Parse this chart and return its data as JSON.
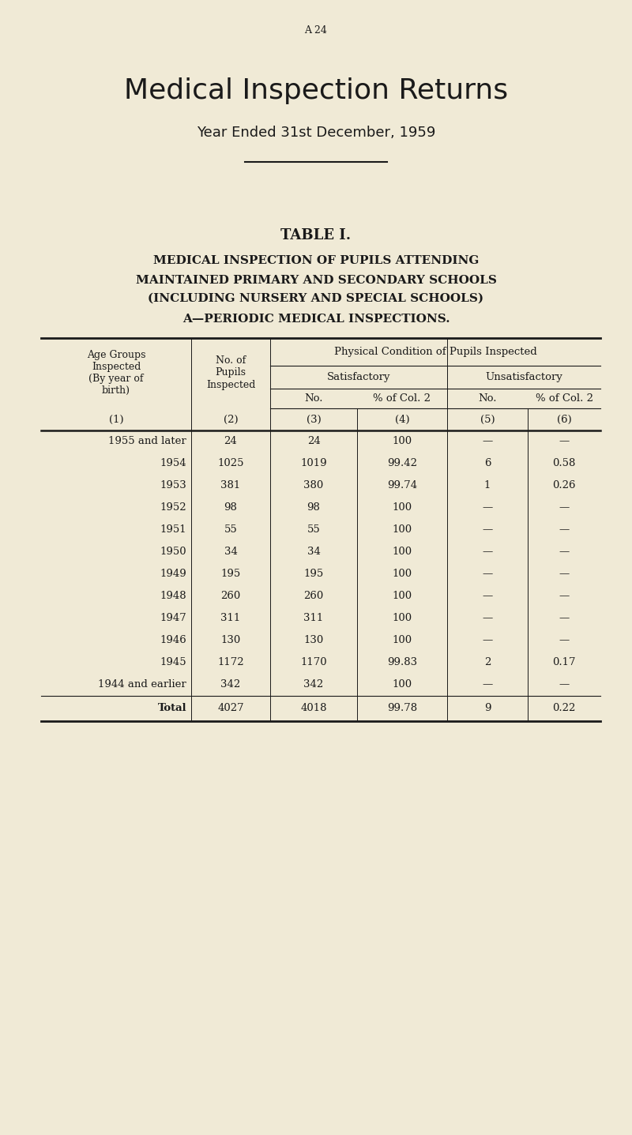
{
  "page_label": "A 24",
  "main_title": "Medical Inspection Returns",
  "subtitle": "Year Ended 31st December, 1959",
  "table_title": "TABLE I.",
  "table_subtitle_lines": [
    "MEDICAL INSPECTION OF PUPILS ATTENDING",
    "MAINTAINED PRIMARY AND SECONDARY SCHOOLS",
    "(INCLUDING NURSERY AND SPECIAL SCHOOLS)"
  ],
  "section_heading": "A—PERIODIC MEDICAL INSPECTIONS.",
  "col_header_row4": [
    "(1)",
    "(2)",
    "(3)",
    "(4)",
    "(5)",
    "(6)"
  ],
  "rows": [
    [
      "1955 and later",
      "24",
      "24",
      "100",
      "—",
      "—"
    ],
    [
      "1954",
      "1025",
      "1019",
      "99.42",
      "6",
      "0.58"
    ],
    [
      "1953",
      "381",
      "380",
      "99.74",
      "1",
      "0.26"
    ],
    [
      "1952",
      "98",
      "98",
      "100",
      "—",
      "—"
    ],
    [
      "1951",
      "55",
      "55",
      "100",
      "—",
      "—"
    ],
    [
      "1950",
      "34",
      "34",
      "100",
      "—",
      "—"
    ],
    [
      "1949",
      "195",
      "195",
      "100",
      "—",
      "—"
    ],
    [
      "1948",
      "260",
      "260",
      "100",
      "—",
      "—"
    ],
    [
      "1947",
      "311",
      "311",
      "100",
      "—",
      "—"
    ],
    [
      "1946",
      "130",
      "130",
      "100",
      "—",
      "—"
    ],
    [
      "1945",
      "1172",
      "1170",
      "99.83",
      "2",
      "0.17"
    ],
    [
      "1944 and earlier",
      "342",
      "342",
      "100",
      "—",
      "—"
    ]
  ],
  "total_row": [
    "Total",
    "4027",
    "4018",
    "99.78",
    "9",
    "0.22"
  ],
  "bg_color": "#f0ead6",
  "text_color": "#1a1a1a",
  "line_color": "#1a1a1a"
}
